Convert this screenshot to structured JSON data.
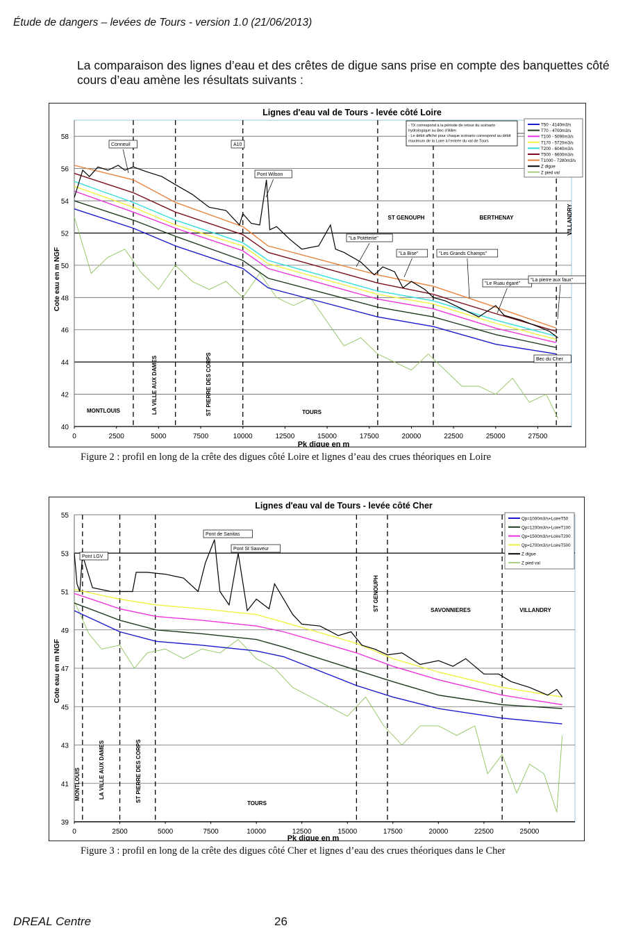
{
  "header": {
    "title": "Étude de dangers – levées de Tours - version 1.0 (21/06/2013)"
  },
  "intro": {
    "text": "La comparaison des lignes d’eau et des crêtes de digue sans prise en compte des banquettes côté cours d’eau amène les résultats suivants :"
  },
  "footer": {
    "org": "DREAL Centre",
    "page": "26"
  },
  "captions": {
    "fig2": "Figure 2 : profil en long de la crête des digues côté Loire et lignes d’eau des crues théoriques en Loire",
    "fig3": "Figure 3 : profil en long de la crête des digues côté Cher et lignes d’eau des crues théoriques dans le Cher"
  },
  "chart_data": [
    {
      "type": "line",
      "title": "Lignes d'eau val de Tours - levée côté Loire",
      "xlabel": "Pk digue en m",
      "ylabel": "Cote eau en m NGF",
      "xlim": [
        0,
        29500
      ],
      "ylim": [
        40,
        59
      ],
      "xticks": [
        0,
        2500,
        5000,
        7500,
        10000,
        12500,
        15000,
        17500,
        20000,
        22500,
        25000,
        27500
      ],
      "yticks": [
        40,
        42,
        44,
        46,
        48,
        50,
        52,
        54,
        56,
        58
      ],
      "grid": true,
      "legend_position": "top-right",
      "note": [
        "- TX correspond à la période de retour du scénario hydrologique au Bec d'Allier.",
        "- Le débit affiché pour chaque scénario correspond au débit maximum de la Loire à l'entrée du val de Tours"
      ],
      "x": [
        0,
        3500,
        6000,
        10000,
        11500,
        18000,
        21300,
        25000,
        28600
      ],
      "series": [
        {
          "name": "T50 - 4140m3/s",
          "color": "#1a1acc",
          "values": [
            53.5,
            52.3,
            51.2,
            49.8,
            48.6,
            46.8,
            46.2,
            45.1,
            44.5
          ]
        },
        {
          "name": "T70 - 4700m3/s",
          "color": "#1f3a1f",
          "values": [
            54.0,
            52.8,
            51.8,
            50.3,
            49.2,
            47.4,
            46.8,
            45.7,
            44.9
          ]
        },
        {
          "name": "T100 - 5090m3/s",
          "color": "#ee33dd",
          "values": [
            54.6,
            53.3,
            52.3,
            50.9,
            49.8,
            47.9,
            47.3,
            46.1,
            45.2
          ]
        },
        {
          "name": "T170 - 5720m3/s",
          "color": "#f0f040",
          "values": [
            54.9,
            53.6,
            52.5,
            51.2,
            50.1,
            48.2,
            47.6,
            46.4,
            45.4
          ]
        },
        {
          "name": "T200 - 6040m3/s",
          "color": "#33dddd",
          "values": [
            55.2,
            53.9,
            52.8,
            51.4,
            50.3,
            48.4,
            47.8,
            46.6,
            45.6
          ]
        },
        {
          "name": "T500 - 6600m3/s",
          "color": "#7a0f1a",
          "values": [
            55.7,
            54.5,
            53.3,
            51.9,
            50.8,
            48.9,
            48.2,
            47.0,
            45.9
          ]
        },
        {
          "name": "T1000 - 7280m3/s",
          "color": "#e8823a",
          "values": [
            56.2,
            55.3,
            53.9,
            52.4,
            51.2,
            49.4,
            48.7,
            47.4,
            46.1
          ]
        }
      ],
      "digue": {
        "name": "Z digue",
        "color": "#000000",
        "x": [
          0,
          500,
          900,
          1400,
          2000,
          2600,
          3000,
          3500,
          4300,
          5200,
          6000,
          7000,
          8000,
          9000,
          9800,
          10000,
          10500,
          11000,
          11400,
          11600,
          12000,
          12800,
          13500,
          14500,
          15200,
          15500,
          16000,
          17000,
          17800,
          18300,
          19000,
          19500,
          20000,
          20800,
          21300,
          22000,
          23000,
          24000,
          25000,
          25500,
          26500,
          27500,
          28200,
          28700
        ],
        "values": [
          54.2,
          55.9,
          55.5,
          56.1,
          55.9,
          56.2,
          55.9,
          56.1,
          55.8,
          55.5,
          55.0,
          54.4,
          53.6,
          53.4,
          52.5,
          53.2,
          52.6,
          52.5,
          55.3,
          52.2,
          52.4,
          51.6,
          51.0,
          51.2,
          52.5,
          51.0,
          50.8,
          50.2,
          49.4,
          49.9,
          49.6,
          48.6,
          49.0,
          48.5,
          48.0,
          47.8,
          47.3,
          46.8,
          47.5,
          46.9,
          46.6,
          46.2,
          45.9,
          45.5
        ]
      },
      "pied_val": {
        "name": "Z pied val",
        "color": "#8ec45a",
        "x": [
          0,
          1000,
          2000,
          3000,
          4000,
          5000,
          6000,
          7000,
          8000,
          9000,
          10000,
          11000,
          12000,
          13000,
          14000,
          15000,
          16000,
          17000,
          18000,
          19000,
          20000,
          21000,
          22000,
          23000,
          24000,
          25000,
          26000,
          27000,
          28000,
          28700
        ],
        "values": [
          53.0,
          49.5,
          50.5,
          51.0,
          49.5,
          48.5,
          50.0,
          49.0,
          48.5,
          49.0,
          48.0,
          49.5,
          48.0,
          47.5,
          48.0,
          46.5,
          45.0,
          45.5,
          44.5,
          44.0,
          43.5,
          44.5,
          43.5,
          42.5,
          42.5,
          42.0,
          43.0,
          41.5,
          42.0,
          40.5
        ]
      },
      "section_dividers_x": [
        3500,
        6000,
        10000,
        18000,
        21300,
        28600
      ],
      "sections": [
        "MONTLOUIS",
        "LA VILLE AUX DAMES",
        "ST PIERRE DES CORPS",
        "TOURS",
        "ST GENOUPH",
        "BERTHENAY",
        "VILLANDRY"
      ],
      "annotations": [
        "Conneuil",
        "A10",
        "Pont Wilson",
        "\"La Potéterie\"",
        "\"La Bise\"",
        "\"Les Grands Champs\"",
        "\"Le Ruau égaré\"",
        "\"La pierre aux faux\"",
        "Bec du Cher"
      ]
    },
    {
      "type": "line",
      "title": "Lignes d'eau val de Tours - levée côté Cher",
      "xlabel": "Pk digue en m",
      "ylabel": "Cote eau en m NGF",
      "xlim": [
        0,
        27500
      ],
      "ylim": [
        39,
        55
      ],
      "xticks": [
        0,
        2500,
        5000,
        7500,
        10000,
        12500,
        15000,
        17500,
        20000,
        22500,
        25000
      ],
      "yticks": [
        39,
        41,
        43,
        45,
        47,
        49,
        51,
        53,
        55
      ],
      "grid": true,
      "legend_position": "top-right",
      "x": [
        0,
        2500,
        4500,
        7000,
        10000,
        11500,
        15500,
        17500,
        20000,
        23500,
        26800
      ],
      "series": [
        {
          "name": "Qp=1000m3/s+LoireT50",
          "color": "#1a1acc",
          "values": [
            50.0,
            48.9,
            48.4,
            48.2,
            47.9,
            47.6,
            46.1,
            45.5,
            44.9,
            44.4,
            44.1
          ]
        },
        {
          "name": "Qp=1200m3/s+LoireT100",
          "color": "#1f3a1f",
          "values": [
            50.4,
            49.5,
            49.0,
            48.8,
            48.5,
            48.1,
            46.9,
            46.3,
            45.6,
            45.1,
            44.9
          ]
        },
        {
          "name": "Qp=1500m3/s+LoireT200",
          "color": "#ee33dd",
          "values": [
            50.9,
            50.1,
            49.7,
            49.5,
            49.2,
            48.9,
            47.8,
            47.1,
            46.4,
            45.6,
            45.1
          ]
        },
        {
          "name": "Qp=1700m3/s+LoireT500",
          "color": "#f0f040",
          "values": [
            51.1,
            50.6,
            50.3,
            50.1,
            49.8,
            49.4,
            48.3,
            47.5,
            46.8,
            46.0,
            45.5
          ]
        }
      ],
      "digue": {
        "name": "Z digue",
        "color": "#000000",
        "x": [
          0,
          150,
          300,
          450,
          1000,
          2000,
          3200,
          3400,
          4000,
          5000,
          6000,
          6800,
          7200,
          7700,
          8000,
          8500,
          9000,
          9500,
          10000,
          10700,
          11000,
          12000,
          12500,
          13500,
          14500,
          15200,
          15800,
          16500,
          17200,
          18000,
          19000,
          20000,
          20800,
          21500,
          22500,
          23300,
          24000,
          25000,
          26000,
          26500,
          26800
        ],
        "values": [
          53.0,
          51.4,
          51.0,
          52.9,
          51.2,
          51.0,
          51.0,
          52.0,
          52.0,
          51.9,
          51.7,
          51.0,
          52.5,
          53.7,
          51.0,
          50.3,
          53.0,
          50.0,
          50.6,
          50.1,
          51.4,
          49.8,
          49.3,
          49.2,
          48.7,
          48.9,
          48.2,
          48.0,
          47.7,
          47.8,
          47.2,
          47.4,
          47.1,
          47.5,
          46.7,
          46.7,
          46.3,
          46.0,
          45.6,
          45.9,
          45.5
        ]
      },
      "pied_val": {
        "name": "Z pied val",
        "color": "#8ec45a",
        "x": [
          0,
          800,
          1500,
          2500,
          3300,
          4000,
          5000,
          6000,
          7000,
          8000,
          9000,
          10000,
          11000,
          12000,
          13000,
          14000,
          15000,
          16000,
          17000,
          18000,
          19000,
          20000,
          21000,
          22000,
          22700,
          23500,
          24300,
          25000,
          25800,
          26500,
          26800
        ],
        "values": [
          50.5,
          48.8,
          48.0,
          48.2,
          47.0,
          47.8,
          48.0,
          47.5,
          48.0,
          47.8,
          48.5,
          47.5,
          47.0,
          46.0,
          45.5,
          45.0,
          44.5,
          45.5,
          44.0,
          43.0,
          44.0,
          44.0,
          43.5,
          44.0,
          41.5,
          42.5,
          40.5,
          42.0,
          41.5,
          39.5,
          43.5
        ]
      },
      "section_dividers_x": [
        450,
        2500,
        4450,
        15500,
        17200,
        23500
      ],
      "sections": [
        "MONTLOUIS",
        "LA VILLE AUX DAMES",
        "ST PIERRE DES CORPS",
        "TOURS",
        "ST GENOUPH",
        "SAVONNIERES",
        "VILLANDRY"
      ],
      "annotations": [
        "Pont LGV",
        "Pont de Sanitas",
        "Pont St Sauveur"
      ]
    }
  ]
}
